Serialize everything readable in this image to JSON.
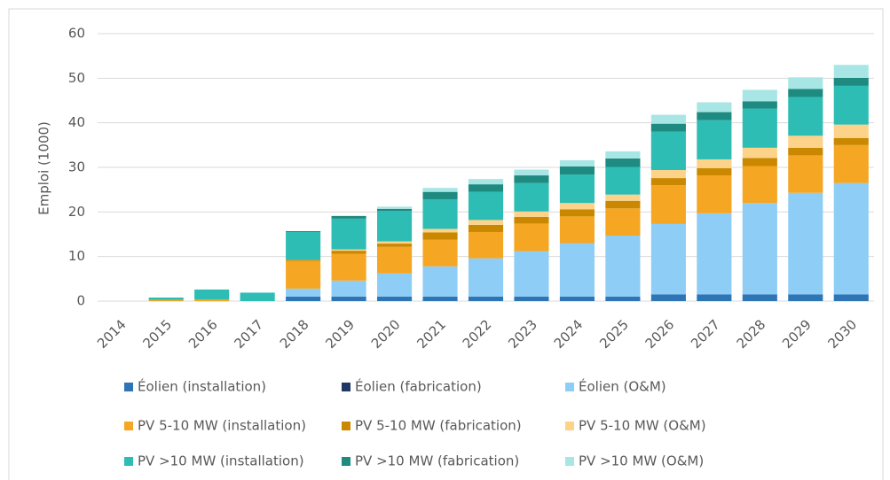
{
  "chart_data": {
    "type": "stacked_bar",
    "y_label": "Emploi (1000)",
    "categories": [
      "2014",
      "2015",
      "2016",
      "2017",
      "2018",
      "2019",
      "2020",
      "2021",
      "2022",
      "2023",
      "2024",
      "2025",
      "2026",
      "2027",
      "2028",
      "2029",
      "2030"
    ],
    "series": [
      {
        "name": "Éolien (installation)",
        "color": "#2e75b6",
        "values": [
          0,
          0,
          0,
          0,
          1.0,
          1.0,
          1.0,
          1.0,
          1.0,
          1.0,
          1.0,
          1.0,
          1.5,
          1.5,
          1.5,
          1.5,
          1.5
        ]
      },
      {
        "name": "Éolien (fabrication)",
        "color": "#1f3864",
        "values": [
          0,
          0,
          0,
          0,
          0,
          0,
          0,
          0,
          0,
          0,
          0,
          0,
          0,
          0,
          0,
          0,
          0
        ]
      },
      {
        "name": "Éolien (O&M)",
        "color": "#8ecdf5",
        "values": [
          0,
          0,
          0,
          0,
          1.8,
          3.6,
          5.2,
          6.8,
          8.6,
          10.2,
          12.0,
          13.7,
          15.8,
          18.2,
          20.5,
          22.8,
          25.0
        ]
      },
      {
        "name": "PV 5-10 MW (installation)",
        "color": "#f5a623",
        "values": [
          0,
          0.3,
          0.4,
          0,
          6.2,
          6.0,
          6.0,
          6.0,
          5.9,
          6.2,
          6.0,
          6.1,
          8.7,
          8.5,
          8.3,
          8.4,
          8.5
        ]
      },
      {
        "name": "PV 5-10 MW (fabrication)",
        "color": "#c98800",
        "values": [
          0,
          0,
          0,
          0,
          0.3,
          0.7,
          0.7,
          1.6,
          1.6,
          1.5,
          1.6,
          1.7,
          1.6,
          1.6,
          1.8,
          1.7,
          1.6
        ]
      },
      {
        "name": "PV 5-10 MW (O&M)",
        "color": "#fdd38a",
        "values": [
          0,
          0,
          0,
          0,
          0,
          0.3,
          0.5,
          0.8,
          1.1,
          1.2,
          1.4,
          1.4,
          1.8,
          2.0,
          2.3,
          2.7,
          3.0
        ]
      },
      {
        "name": "PV >10 MW (installation)",
        "color": "#2ebdb5",
        "values": [
          0,
          0.5,
          2.2,
          1.9,
          6.2,
          6.9,
          6.8,
          6.6,
          6.3,
          6.4,
          6.4,
          6.2,
          8.6,
          8.8,
          8.8,
          8.7,
          8.7
        ]
      },
      {
        "name": "PV >10 MW (fabrication)",
        "color": "#1e8a80",
        "values": [
          0,
          0,
          0,
          0,
          0.2,
          0.6,
          0.5,
          1.7,
          1.7,
          1.7,
          1.8,
          1.9,
          1.8,
          1.8,
          1.6,
          1.8,
          1.8
        ]
      },
      {
        "name": "PV >10 MW (O&M)",
        "color": "#a8e6e6",
        "values": [
          0,
          0,
          0,
          0,
          0,
          0,
          0.5,
          0.9,
          1.2,
          1.3,
          1.4,
          1.6,
          2.0,
          2.2,
          2.6,
          2.6,
          2.9
        ]
      }
    ],
    "ylim": [
      0,
      60
    ],
    "yticks": [
      0,
      10,
      20,
      30,
      40,
      50,
      60
    ],
    "grid": true,
    "legend": "bottom"
  }
}
